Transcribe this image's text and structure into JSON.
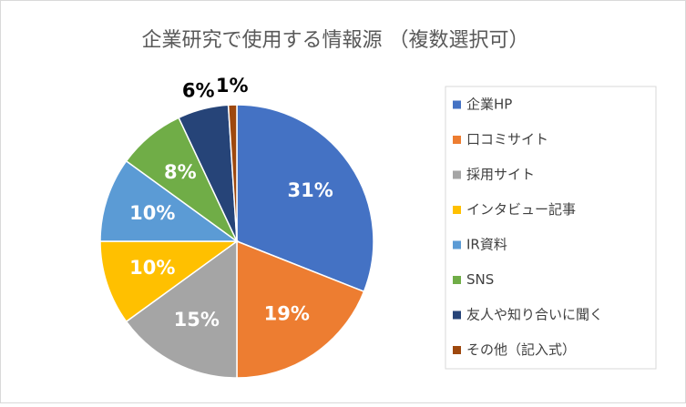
{
  "chart_data": {
    "type": "pie",
    "title": "企業研究で使用する情報源 （複数選択可）",
    "categories": [
      "企業HP",
      "口コミサイト",
      "採用サイト",
      "インタビュー記事",
      "IR資料",
      "SNS",
      "友人や知り合いに聞く",
      "その他（記入式）"
    ],
    "values": [
      31,
      19,
      15,
      10,
      10,
      8,
      6,
      1
    ],
    "value_labels": [
      "31%",
      "19%",
      "15%",
      "10%",
      "10%",
      "8%",
      "6%",
      "1%"
    ],
    "colors": [
      "#4472c4",
      "#ed7d31",
      "#a5a5a5",
      "#ffc000",
      "#5b9bd5",
      "#70ad47",
      "#264478",
      "#9e480e"
    ],
    "legend": "right"
  }
}
